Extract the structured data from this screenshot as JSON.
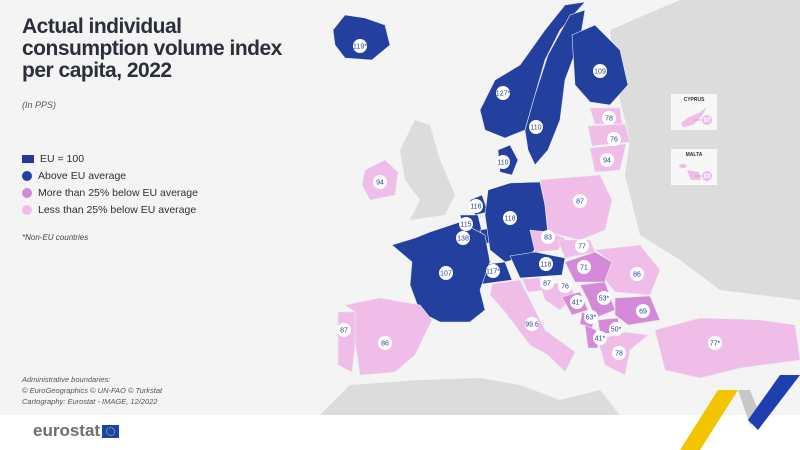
{
  "title": "Actual individual consumption volume index per capita, 2022",
  "subtitle": "(In PPS)",
  "legend": {
    "eu": "EU = 100",
    "above": "Above EU average",
    "more_below": "More than 25% below EU average",
    "less_below": "Less than 25% below EU average"
  },
  "colors": {
    "above": "#24409f",
    "more_below": "#d48ad8",
    "less_below": "#f0bde9",
    "non_eu_land": "#dcdcdc",
    "sea": "#f4f4f4"
  },
  "note": "*Non-EU countries",
  "credits": [
    "Administrative boundaries:",
    "© EuroGeographics © UN-FAO © Turkstat",
    "Cartography: Eurostat - IMAGE, 12/2022"
  ],
  "brand": "eurostat",
  "insets": [
    {
      "name": "CYPRUS",
      "value": "97",
      "category": "less_below"
    },
    {
      "name": "MALTA",
      "value": "83",
      "category": "less_below"
    }
  ],
  "countries": [
    {
      "id": "IS",
      "value": "119*",
      "category": "above"
    },
    {
      "id": "NO",
      "value": "127*",
      "category": "above"
    },
    {
      "id": "SE",
      "value": "110",
      "category": "above"
    },
    {
      "id": "FI",
      "value": "109",
      "category": "above"
    },
    {
      "id": "EE",
      "value": "78",
      "category": "less_below"
    },
    {
      "id": "LV",
      "value": "76",
      "category": "less_below"
    },
    {
      "id": "LT",
      "value": "94",
      "category": "less_below"
    },
    {
      "id": "DK",
      "value": "110",
      "category": "above"
    },
    {
      "id": "IE",
      "value": "94",
      "category": "less_below"
    },
    {
      "id": "NL",
      "value": "116",
      "category": "above"
    },
    {
      "id": "BE",
      "value": "115",
      "category": "above"
    },
    {
      "id": "LU",
      "value": "138",
      "category": "above"
    },
    {
      "id": "DE",
      "value": "118",
      "category": "above"
    },
    {
      "id": "PL",
      "value": "87",
      "category": "less_below"
    },
    {
      "id": "CZ",
      "value": "83",
      "category": "less_below"
    },
    {
      "id": "SK",
      "value": "77",
      "category": "less_below"
    },
    {
      "id": "AT",
      "value": "118",
      "category": "above"
    },
    {
      "id": "CH",
      "value": "117*",
      "category": "above"
    },
    {
      "id": "FR",
      "value": "107",
      "category": "above"
    },
    {
      "id": "HU",
      "value": "71",
      "category": "more_below"
    },
    {
      "id": "RO",
      "value": "86",
      "category": "less_below"
    },
    {
      "id": "SI",
      "value": "87",
      "category": "less_below"
    },
    {
      "id": "HR",
      "value": "76",
      "category": "less_below"
    },
    {
      "id": "BA",
      "value": "41*",
      "category": "more_below"
    },
    {
      "id": "RS",
      "value": "53*",
      "category": "more_below"
    },
    {
      "id": "ME",
      "value": "63*",
      "category": "more_below"
    },
    {
      "id": "MK",
      "value": "50*",
      "category": "more_below"
    },
    {
      "id": "AL",
      "value": "41*",
      "category": "more_below"
    },
    {
      "id": "BG",
      "value": "69",
      "category": "more_below"
    },
    {
      "id": "GR",
      "value": "78",
      "category": "less_below"
    },
    {
      "id": "IT",
      "value": "99.6",
      "category": "less_below"
    },
    {
      "id": "ES",
      "value": "86",
      "category": "less_below"
    },
    {
      "id": "PT",
      "value": "87",
      "category": "less_below"
    },
    {
      "id": "TR",
      "value": "77*",
      "category": "less_below"
    }
  ]
}
